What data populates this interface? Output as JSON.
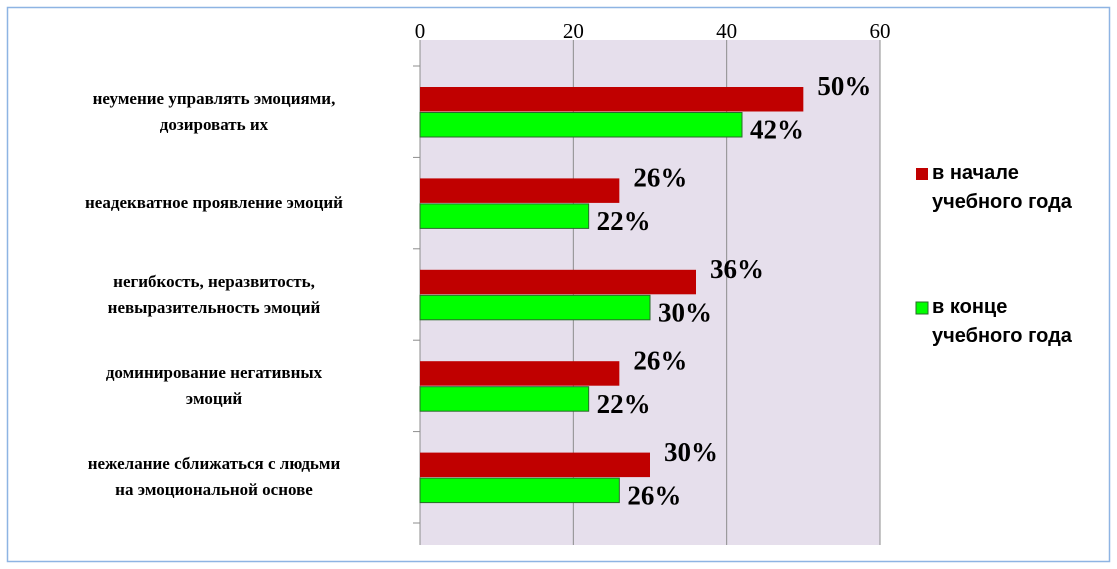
{
  "chart_data": {
    "type": "bar",
    "orientation": "horizontal",
    "categories": [
      "неумение управлять эмоциями,\nдозировать их",
      "неадекватное проявление эмоций",
      "негибкость, неразвитость,\nневыразительность эмоций",
      "доминирование негативных\nэмоций",
      "нежелание сближаться с людьми\nна эмоциональной основе"
    ],
    "series": [
      {
        "name": "в начале\nучебного года",
        "color": "#c00000",
        "values": [
          50,
          26,
          36,
          26,
          30
        ],
        "value_labels": [
          "50%",
          "26%",
          "36%",
          "26%",
          "30%"
        ]
      },
      {
        "name": "в конце\nучебного года",
        "color": "#00ff00",
        "values": [
          42,
          22,
          30,
          22,
          26
        ],
        "value_labels": [
          "42%",
          "22%",
          "30%",
          "22%",
          "26%"
        ]
      }
    ],
    "xlim": [
      0,
      60
    ],
    "xticks": [
      0,
      20,
      40,
      60
    ],
    "grid": true,
    "legend": "right"
  }
}
